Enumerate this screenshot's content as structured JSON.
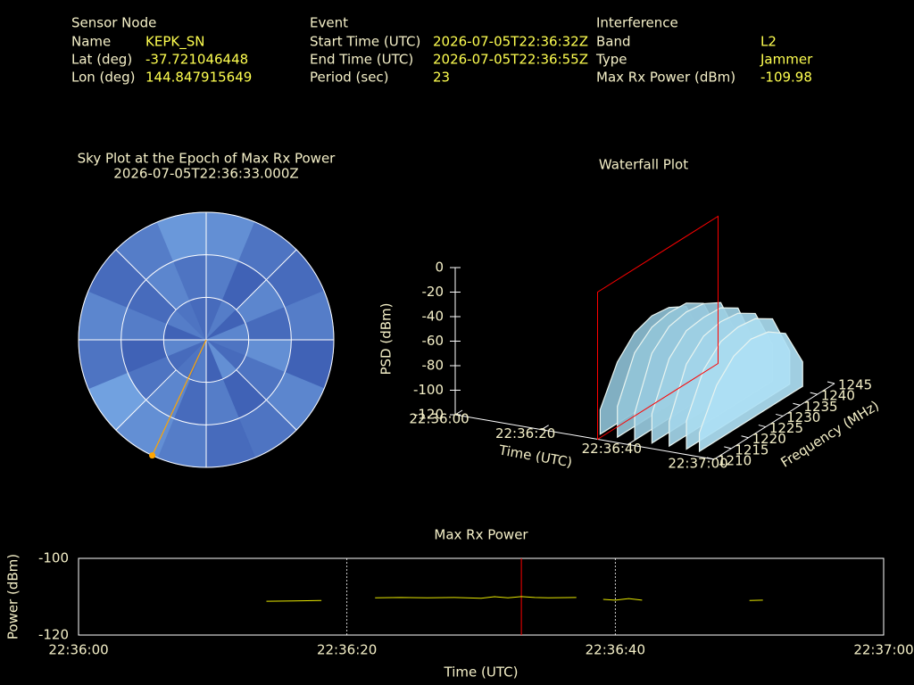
{
  "info": {
    "sensor": {
      "title": "Sensor Node",
      "rows": [
        [
          "Name",
          "KEPK_SN"
        ],
        [
          "Lat (deg)",
          -37.721046448
        ],
        [
          "Lon (deg)",
          144.847915649
        ]
      ]
    },
    "event": {
      "title": "Event",
      "rows": [
        [
          "Start Time (UTC)",
          "2026-07-05T22:36:32Z"
        ],
        [
          "End Time (UTC)",
          "2026-07-05T22:36:55Z"
        ],
        [
          "Period (sec)",
          23
        ]
      ]
    },
    "interference": {
      "title": "Interference",
      "rows": [
        [
          "Band",
          "L2"
        ],
        [
          "Type",
          "Jammer"
        ],
        [
          "Max Rx Power (dBm)",
          -109.98
        ]
      ]
    }
  },
  "chart_data": [
    {
      "type": "sky",
      "title": "Sky Plot at the Epoch of Max Rx Power",
      "subtitle": "2026-07-05T22:36:33.000Z",
      "cells": [
        [
          0.3,
          0.5,
          0.2,
          0.6,
          0.4,
          0.3,
          0.7,
          0.2,
          0.5,
          0.4,
          0.3,
          0.6,
          0.2,
          0.5,
          0.4,
          0.3
        ],
        [
          0.5,
          0.2,
          0.6,
          0.3,
          0.7,
          0.4,
          0.2,
          0.5,
          0.3,
          0.6,
          0.4,
          0.2,
          0.5,
          0.3,
          0.6,
          0.4
        ],
        [
          0.7,
          0.4,
          0.3,
          0.5,
          0.2,
          0.6,
          0.4,
          0.3,
          0.5,
          0.7,
          0.9,
          0.4,
          0.6,
          0.3,
          0.5,
          0.8
        ]
      ],
      "max_point": {
        "azimuth": 205,
        "elevation": 0
      },
      "line_color": "#ffa500"
    },
    {
      "type": "waterfall",
      "title": "Waterfall Plot",
      "x_label": "Time (UTC)",
      "y_label": "Frequency (MHz)",
      "z_label": "PSD (dBm)",
      "xlim": [
        0,
        60
      ],
      "xticks": [
        {
          "value": 0,
          "label": "22:36:00"
        },
        {
          "value": 20,
          "label": "22:36:20"
        },
        {
          "value": 40,
          "label": "22:36:40"
        },
        {
          "value": 60,
          "label": "22:37:00"
        }
      ],
      "ylim": [
        1210,
        1245
      ],
      "yticks": [
        1210,
        1215,
        1220,
        1225,
        1230,
        1235,
        1240,
        1245
      ],
      "zlim": [
        -120,
        0
      ],
      "zticks": [
        -120,
        -100,
        -80,
        -60,
        -40,
        -20,
        0
      ],
      "times": [
        32,
        36,
        40,
        44,
        48,
        52,
        55
      ],
      "freqs": [
        1212,
        1217,
        1222,
        1227,
        1232,
        1237,
        1242
      ],
      "z": [
        [
          -100,
          -70,
          -55,
          -50,
          -52,
          -60,
          -95
        ],
        [
          -95,
          -60,
          -48,
          -45,
          -46,
          -55,
          -90
        ],
        [
          -98,
          -58,
          -45,
          -42,
          -44,
          -52,
          -88
        ],
        [
          -96,
          -60,
          -46,
          -44,
          -45,
          -54,
          -92
        ],
        [
          -100,
          -62,
          -48,
          -45,
          -47,
          -56,
          -90
        ],
        [
          -97,
          -64,
          -50,
          -47,
          -49,
          -58,
          -93
        ],
        [
          -105,
          -75,
          -60,
          -55,
          -58,
          -68,
          -100
        ]
      ],
      "marker_time": 33,
      "marker_color": "#ff0000"
    },
    {
      "type": "line",
      "title": "Max Rx Power",
      "x_label": "Time (UTC)",
      "y_label": "Power (dBm)",
      "xlim": [
        0,
        60
      ],
      "xticks": [
        {
          "value": 0,
          "label": "22:36:00"
        },
        {
          "value": 20,
          "label": "22:36:20"
        },
        {
          "value": 40,
          "label": "22:36:40"
        },
        {
          "value": 60,
          "label": "22:37:00"
        }
      ],
      "ylim": [
        -120,
        -100
      ],
      "yticks": [
        -100,
        -120
      ],
      "grid": true,
      "marker_x": 33,
      "marker_color": "#ff0000",
      "series": [
        {
          "name": "Max Rx Power",
          "color": "#e8e800",
          "x": [
            14,
            16,
            18.1,
            20,
            22.1,
            24,
            26,
            28,
            30,
            31,
            32,
            33,
            34,
            35,
            37.1,
            38,
            39.1,
            40,
            41,
            42,
            46,
            50,
            51
          ],
          "values": [
            -111.2,
            -111.1,
            -111.0,
            null,
            -110.3,
            -110.2,
            -110.3,
            -110.2,
            -110.4,
            -110.0,
            -110.3,
            -109.98,
            -110.2,
            -110.3,
            -110.2,
            null,
            -110.7,
            -110.9,
            -110.5,
            -110.9,
            null,
            -111.0,
            -110.9
          ]
        }
      ]
    }
  ]
}
